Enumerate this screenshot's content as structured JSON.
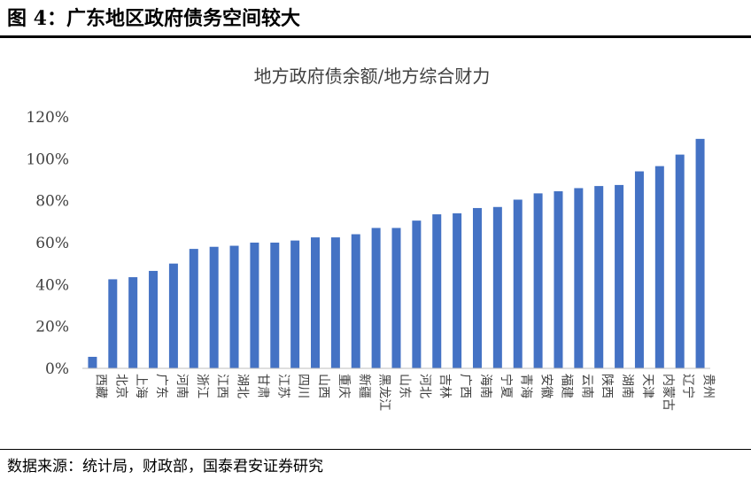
{
  "figure": {
    "label": "图 4：广东地区政府债务空间较大",
    "source": "数据来源：统计局，财政部，国泰君安证券研究"
  },
  "chart_data": {
    "type": "bar",
    "title": "地方政府债余额/地方综合财力",
    "xlabel": "",
    "ylabel": "",
    "ylim": [
      0,
      120
    ],
    "yticks": [
      0,
      20,
      40,
      60,
      80,
      100,
      120
    ],
    "ytick_labels": [
      "0%",
      "20%",
      "40%",
      "60%",
      "80%",
      "100%",
      "120%"
    ],
    "y_unit": "%",
    "grid": false,
    "legend": "none",
    "bar_color": "#4472C4",
    "categories": [
      "西藏",
      "北京",
      "上海",
      "广东",
      "河南",
      "浙江",
      "江西",
      "湖北",
      "甘肃",
      "江苏",
      "四川",
      "山西",
      "重庆",
      "新疆",
      "黑龙江",
      "山东",
      "河北",
      "吉林",
      "广西",
      "海南",
      "宁夏",
      "青海",
      "安徽",
      "福建",
      "云南",
      "陕西",
      "湖南",
      "天津",
      "内蒙古",
      "辽宁",
      "贵州"
    ],
    "values": [
      5.5,
      42.5,
      43.5,
      46.5,
      50,
      57,
      58,
      58.5,
      60,
      60,
      61,
      62.5,
      62.5,
      64,
      67,
      67,
      70.5,
      73.5,
      74,
      76.5,
      77,
      80.5,
      83.5,
      84.5,
      86,
      87,
      87.5,
      94,
      96.5,
      102,
      109.5
    ]
  }
}
